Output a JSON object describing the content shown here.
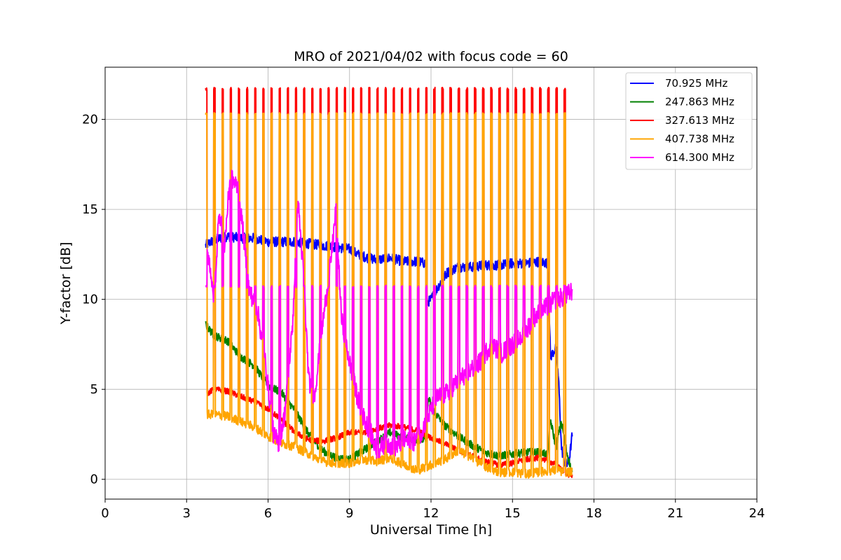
{
  "chart_data": {
    "type": "line",
    "title": "MRO of 2021/04/02 with focus code = 60",
    "xlabel": "Universal Time [h]",
    "ylabel": "Y-factor [dB]",
    "xlim": [
      0,
      24
    ],
    "ylim": [
      -1.1,
      22.9
    ],
    "xticks": [
      0,
      3,
      6,
      9,
      12,
      15,
      18,
      21,
      24
    ],
    "yticks": [
      0,
      5,
      10,
      15,
      20
    ],
    "xtick_labels": [
      "0",
      "3",
      "6",
      "9",
      "12",
      "15",
      "18",
      "21",
      "24"
    ],
    "ytick_labels": [
      "0",
      "5",
      "10",
      "15",
      "20"
    ],
    "grid": true,
    "legend_position": "top-right",
    "spike_times": [
      3.7,
      4.0,
      4.3,
      4.6,
      4.9,
      5.2,
      5.5,
      5.8,
      6.1,
      6.4,
      6.7,
      7.0,
      7.3,
      7.6,
      7.9,
      8.2,
      8.5,
      8.8,
      9.1,
      9.4,
      9.7,
      10.0,
      10.3,
      10.6,
      10.9,
      11.2,
      11.5,
      11.8,
      12.1,
      12.4,
      12.7,
      13.0,
      13.3,
      13.6,
      13.9,
      14.2,
      14.5,
      14.8,
      15.1,
      15.4,
      15.7,
      16.0,
      16.3,
      16.6,
      16.9
    ],
    "series": [
      {
        "name": "70.925 MHz",
        "legend_label": " 70.925 MHz",
        "color": "#0000ff",
        "points": [
          [
            3.7,
            13.0
          ],
          [
            4.0,
            13.3
          ],
          [
            4.5,
            13.5
          ],
          [
            5.0,
            13.4
          ],
          [
            5.5,
            13.4
          ],
          [
            6.0,
            13.2
          ],
          [
            6.5,
            13.2
          ],
          [
            7.0,
            13.2
          ],
          [
            7.5,
            13.1
          ],
          [
            8.0,
            13.0
          ],
          [
            8.5,
            12.9
          ],
          [
            9.0,
            12.8
          ],
          [
            9.3,
            12.5
          ],
          [
            9.7,
            12.3
          ],
          [
            10.0,
            12.2
          ],
          [
            10.5,
            12.3
          ],
          [
            11.0,
            12.1
          ],
          [
            11.5,
            12.1
          ],
          [
            11.8,
            12.0
          ],
          [
            11.85,
            9.8
          ],
          [
            12.0,
            10.0
          ],
          [
            12.3,
            10.8
          ],
          [
            12.6,
            11.5
          ],
          [
            13.0,
            11.8
          ],
          [
            13.5,
            11.8
          ],
          [
            14.0,
            11.9
          ],
          [
            14.5,
            11.9
          ],
          [
            15.0,
            12.0
          ],
          [
            15.5,
            12.0
          ],
          [
            16.0,
            12.1
          ],
          [
            16.3,
            12.0
          ],
          [
            16.4,
            6.8
          ],
          [
            16.6,
            7.3
          ],
          [
            16.7,
            5.5
          ],
          [
            16.8,
            1.8
          ],
          [
            16.9,
            1.0
          ],
          [
            17.0,
            0.8
          ],
          [
            17.1,
            1.2
          ],
          [
            17.2,
            2.5
          ]
        ],
        "noise": 0.28
      },
      {
        "name": "247.863 MHz",
        "legend_label": "247.863 MHz",
        "color": "#008000",
        "points": [
          [
            3.7,
            8.6
          ],
          [
            4.0,
            8.0
          ],
          [
            4.5,
            7.7
          ],
          [
            5.0,
            6.8
          ],
          [
            5.5,
            6.3
          ],
          [
            6.0,
            5.2
          ],
          [
            6.5,
            4.8
          ],
          [
            7.0,
            3.8
          ],
          [
            7.5,
            2.5
          ],
          [
            8.0,
            1.6
          ],
          [
            8.5,
            1.2
          ],
          [
            9.0,
            1.1
          ],
          [
            9.3,
            1.4
          ],
          [
            9.7,
            1.8
          ],
          [
            10.0,
            2.1
          ],
          [
            10.5,
            2.6
          ],
          [
            11.0,
            2.3
          ],
          [
            11.5,
            2.2
          ],
          [
            11.8,
            2.2
          ],
          [
            11.9,
            4.5
          ],
          [
            12.1,
            3.8
          ],
          [
            12.5,
            3.0
          ],
          [
            13.0,
            2.4
          ],
          [
            13.5,
            1.9
          ],
          [
            14.0,
            1.5
          ],
          [
            14.5,
            1.3
          ],
          [
            15.0,
            1.4
          ],
          [
            15.5,
            1.5
          ],
          [
            16.0,
            1.5
          ],
          [
            16.3,
            1.4
          ],
          [
            16.4,
            3.3
          ],
          [
            16.6,
            1.8
          ],
          [
            16.8,
            3.2
          ],
          [
            17.0,
            1.5
          ],
          [
            17.2,
            0.3
          ]
        ],
        "noise": 0.22
      },
      {
        "name": "327.613 MHz",
        "legend_label": "327.613 MHz",
        "color": "#ff0000",
        "spike_peak": 21.7,
        "points": [
          [
            3.7,
            4.7
          ],
          [
            4.0,
            5.0
          ],
          [
            4.5,
            4.9
          ],
          [
            5.0,
            4.6
          ],
          [
            5.5,
            4.3
          ],
          [
            6.0,
            3.9
          ],
          [
            6.5,
            3.3
          ],
          [
            7.0,
            2.6
          ],
          [
            7.5,
            2.2
          ],
          [
            8.0,
            2.1
          ],
          [
            8.5,
            2.3
          ],
          [
            9.0,
            2.6
          ],
          [
            9.5,
            2.6
          ],
          [
            10.0,
            2.8
          ],
          [
            10.5,
            3.0
          ],
          [
            11.0,
            2.9
          ],
          [
            11.5,
            2.7
          ],
          [
            12.0,
            2.3
          ],
          [
            12.5,
            2.0
          ],
          [
            13.0,
            1.6
          ],
          [
            13.5,
            1.3
          ],
          [
            14.0,
            1.0
          ],
          [
            14.5,
            0.8
          ],
          [
            15.0,
            0.9
          ],
          [
            15.5,
            1.1
          ],
          [
            16.0,
            1.2
          ],
          [
            16.5,
            0.9
          ],
          [
            17.0,
            0.3
          ],
          [
            17.2,
            0.2
          ]
        ],
        "noise": 0.16
      },
      {
        "name": "407.738 MHz",
        "legend_label": "407.738 MHz",
        "color": "#ffa500",
        "spike_peak": 20.3,
        "points": [
          [
            3.7,
            3.6
          ],
          [
            4.0,
            3.6
          ],
          [
            4.5,
            3.5
          ],
          [
            5.0,
            3.2
          ],
          [
            5.5,
            2.9
          ],
          [
            6.0,
            2.4
          ],
          [
            6.5,
            2.0
          ],
          [
            7.0,
            1.8
          ],
          [
            7.5,
            1.4
          ],
          [
            8.0,
            1.0
          ],
          [
            8.5,
            0.9
          ],
          [
            9.0,
            0.9
          ],
          [
            9.5,
            1.1
          ],
          [
            10.0,
            1.0
          ],
          [
            10.5,
            1.2
          ],
          [
            11.0,
            0.8
          ],
          [
            11.5,
            0.5
          ],
          [
            12.0,
            0.8
          ],
          [
            12.5,
            1.1
          ],
          [
            13.0,
            1.6
          ],
          [
            13.5,
            1.2
          ],
          [
            14.0,
            0.7
          ],
          [
            14.5,
            0.4
          ],
          [
            15.0,
            0.4
          ],
          [
            15.5,
            0.3
          ],
          [
            16.0,
            0.4
          ],
          [
            16.5,
            0.5
          ],
          [
            17.0,
            0.4
          ],
          [
            17.2,
            0.4
          ]
        ],
        "noise": 0.25
      },
      {
        "name": "614.300 MHz",
        "legend_label": "614.300 MHz",
        "color": "#ff00ff",
        "spike_peak": 10.7,
        "points": [
          [
            3.7,
            13.3
          ],
          [
            3.9,
            11.5
          ],
          [
            4.0,
            9.5
          ],
          [
            4.2,
            15.0
          ],
          [
            4.4,
            13.0
          ],
          [
            4.6,
            16.8
          ],
          [
            4.9,
            16.2
          ],
          [
            5.1,
            13.5
          ],
          [
            5.3,
            10.5
          ],
          [
            5.6,
            9.5
          ],
          [
            5.9,
            6.5
          ],
          [
            6.2,
            2.5
          ],
          [
            6.4,
            2.0
          ],
          [
            6.6,
            3.5
          ],
          [
            6.9,
            8.5
          ],
          [
            7.1,
            15.5
          ],
          [
            7.3,
            11.5
          ],
          [
            7.5,
            5.5
          ],
          [
            7.7,
            4.5
          ],
          [
            8.0,
            8.5
          ],
          [
            8.3,
            12.0
          ],
          [
            8.5,
            15.0
          ],
          [
            8.7,
            9.0
          ],
          [
            9.0,
            6.5
          ],
          [
            9.3,
            4.5
          ],
          [
            9.5,
            3.5
          ],
          [
            9.8,
            2.5
          ],
          [
            10.0,
            1.5
          ],
          [
            10.3,
            2.0
          ],
          [
            10.7,
            1.8
          ],
          [
            11.0,
            2.2
          ],
          [
            11.3,
            2.0
          ],
          [
            11.6,
            2.5
          ],
          [
            11.9,
            3.5
          ],
          [
            12.2,
            4.5
          ],
          [
            12.6,
            4.8
          ],
          [
            13.0,
            5.5
          ],
          [
            13.4,
            6.0
          ],
          [
            13.8,
            6.5
          ],
          [
            14.2,
            7.5
          ],
          [
            14.6,
            7.0
          ],
          [
            15.0,
            7.5
          ],
          [
            15.4,
            8.0
          ],
          [
            15.8,
            9.0
          ],
          [
            16.2,
            9.5
          ],
          [
            16.6,
            10.0
          ],
          [
            17.0,
            10.2
          ],
          [
            17.2,
            10.5
          ]
        ],
        "noise": 0.55
      }
    ]
  }
}
